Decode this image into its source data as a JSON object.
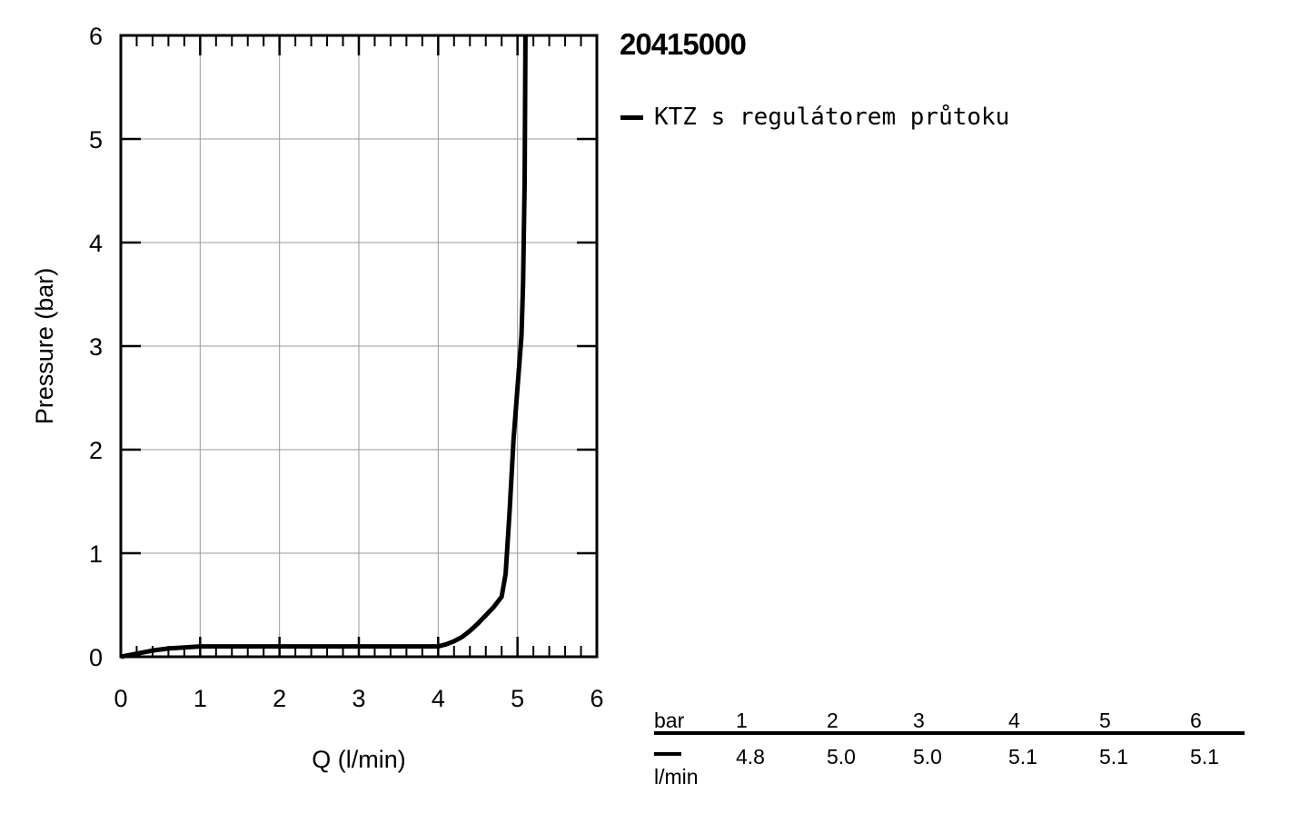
{
  "product_code": "20415000",
  "legend": {
    "label": "KTZ s regulátorem průtoku",
    "color": "#000000"
  },
  "chart_data": {
    "type": "line",
    "title": "",
    "xlabel": "Q (l/min)",
    "ylabel": "Pressure (bar)",
    "xlim": [
      0,
      6
    ],
    "ylim": [
      0,
      6
    ],
    "xticks": [
      "0",
      "1",
      "2",
      "3",
      "4",
      "5",
      "6"
    ],
    "yticks": [
      "0",
      "1",
      "2",
      "3",
      "4",
      "5",
      "6"
    ],
    "grid": true,
    "series": [
      {
        "name": "KTZ s regulátorem průtoku",
        "color": "#000000",
        "x": [
          0,
          0.2,
          0.4,
          0.6,
          0.8,
          1.0,
          2.0,
          3.0,
          3.9,
          4.0,
          4.1,
          4.2,
          4.3,
          4.4,
          4.5,
          4.6,
          4.7,
          4.8,
          4.85,
          4.9,
          4.95,
          5.0,
          5.05,
          5.07,
          5.09,
          5.1
        ],
        "y": [
          0,
          0.03,
          0.06,
          0.08,
          0.09,
          0.1,
          0.1,
          0.1,
          0.1,
          0.1,
          0.12,
          0.15,
          0.19,
          0.25,
          0.32,
          0.4,
          0.48,
          0.58,
          0.8,
          1.4,
          2.1,
          2.6,
          3.1,
          3.6,
          4.6,
          6.0
        ]
      }
    ]
  },
  "flow_table": {
    "header_label": "bar",
    "pressures": [
      "1",
      "2",
      "3",
      "4",
      "5",
      "6"
    ],
    "flows": [
      "4.8",
      "5.0",
      "5.0",
      "5.1",
      "5.1",
      "5.1"
    ],
    "unit": "l/min"
  }
}
